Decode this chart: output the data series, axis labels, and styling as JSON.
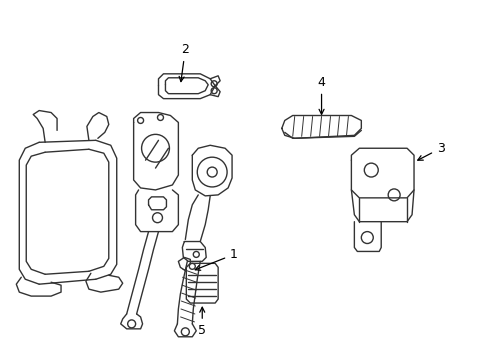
{
  "background_color": "#ffffff",
  "line_color": "#333333",
  "line_width": 1.0,
  "label_fontsize": 9,
  "figsize": [
    4.89,
    3.6
  ],
  "dpi": 100
}
